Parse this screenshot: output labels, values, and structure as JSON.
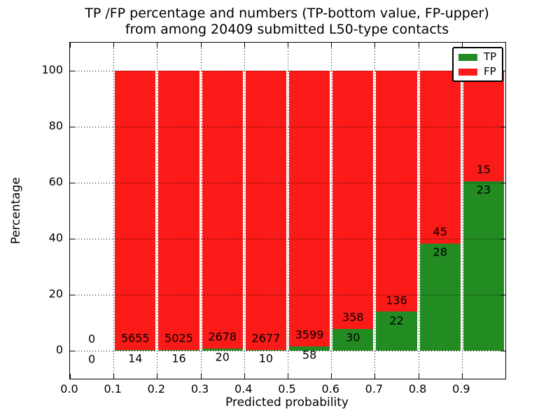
{
  "title": {
    "line1": "TP /FP percentage and numbers (TP-bottom value, FP-upper)",
    "line2": "from among 20409 submitted L50-type contacts"
  },
  "chart_data": {
    "type": "bar",
    "stacked": true,
    "normalization": "each bar normalized to 100% of its bin total",
    "bin_edges": [
      0.0,
      0.1,
      0.2,
      0.3,
      0.4,
      0.5,
      0.6,
      0.7,
      0.8,
      0.9,
      1.0
    ],
    "series": [
      {
        "name": "TP",
        "color": "#228b22",
        "counts": [
          0,
          14,
          16,
          20,
          10,
          58,
          30,
          22,
          28,
          23
        ]
      },
      {
        "name": "FP",
        "color": "#fa1a17",
        "counts": [
          0,
          5655,
          5025,
          2678,
          2677,
          3599,
          358,
          136,
          45,
          15
        ]
      }
    ],
    "total_submitted": 20409,
    "xlabel": "Predicted probability",
    "ylabel": "Percentage",
    "x_tick_labels": [
      "0.0",
      "0.1",
      "0.2",
      "0.3",
      "0.4",
      "0.5",
      "0.6",
      "0.7",
      "0.8",
      "0.9"
    ],
    "y_tick_values": [
      0,
      20,
      40,
      60,
      80,
      100
    ],
    "xlim": [
      0.0,
      1.0
    ],
    "ylim": [
      -10,
      110
    ],
    "grid": true,
    "legend_position": "upper right"
  }
}
